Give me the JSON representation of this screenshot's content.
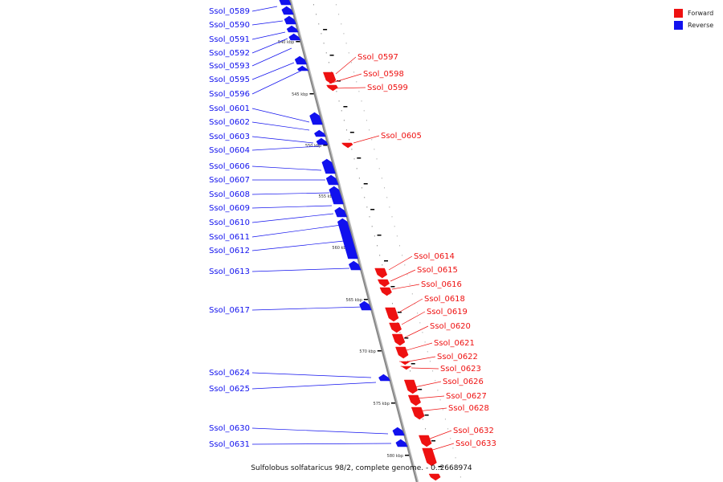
{
  "caption": "Sulfolobus solfataricus 98/2, complete genome. - 0..2668974",
  "legend": [
    {
      "label": "Forward",
      "color": "#ee1111"
    },
    {
      "label": "Reverse",
      "color": "#1111ee"
    }
  ],
  "colors": {
    "forward": "#ee1111",
    "reverse": "#1111ee",
    "axis": "#888888"
  },
  "kbp_marks": [
    "540 kbp",
    "545 kbp",
    "550 kbp",
    "555 kbp",
    "560 kbp",
    "565 kbp",
    "570 kbp",
    "575 kbp",
    "580 kbp"
  ],
  "reverse_genes": [
    "Ssol_0589",
    "Ssol_0590",
    "Ssol_0591",
    "Ssol_0592",
    "Ssol_0593",
    "Ssol_0595",
    "Ssol_0596",
    "Ssol_0601",
    "Ssol_0602",
    "Ssol_0603",
    "Ssol_0604",
    "Ssol_0606",
    "Ssol_0607",
    "Ssol_0608",
    "Ssol_0609",
    "Ssol_0610",
    "Ssol_0611",
    "Ssol_0612",
    "Ssol_0613",
    "Ssol_0617",
    "Ssol_0624",
    "Ssol_0625",
    "Ssol_0630",
    "Ssol_0631"
  ],
  "forward_genes": [
    "Ssol_0597",
    "Ssol_0598",
    "Ssol_0599",
    "Ssol_0605",
    "Ssol_0614",
    "Ssol_0615",
    "Ssol_0616",
    "Ssol_0618",
    "Ssol_0619",
    "Ssol_0620",
    "Ssol_0621",
    "Ssol_0622",
    "Ssol_0623",
    "Ssol_0626",
    "Ssol_0627",
    "Ssol_0628",
    "Ssol_0632",
    "Ssol_0633"
  ]
}
